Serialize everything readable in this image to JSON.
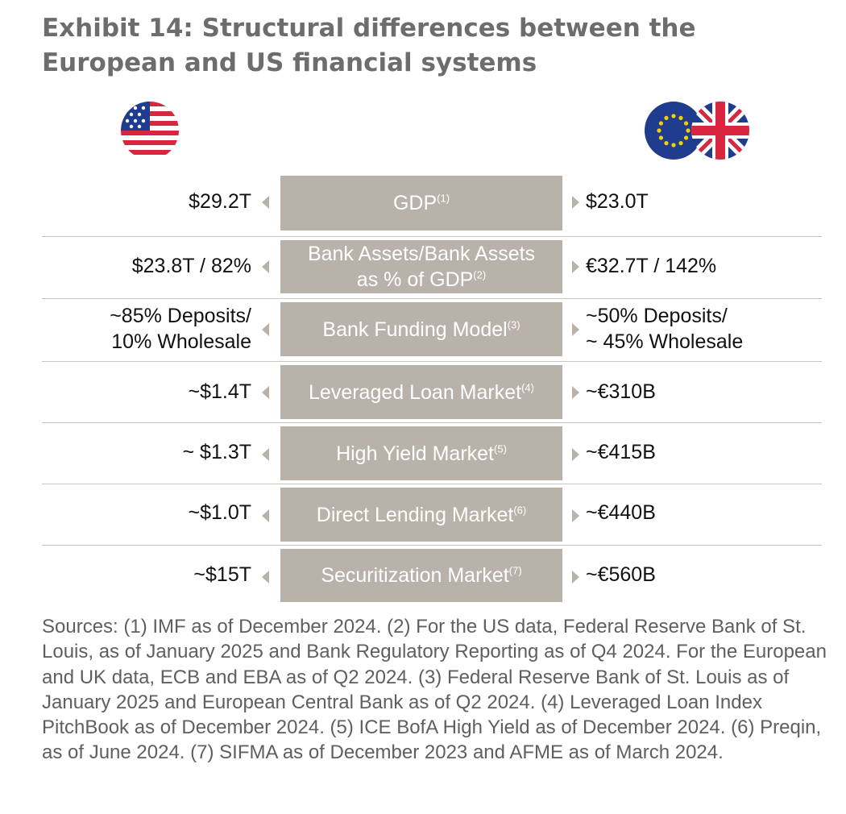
{
  "title": "Exhibit 14: Structural differences between the European and US financial systems",
  "flags": {
    "left": "us-flag",
    "right": [
      "eu-flag",
      "uk-flag"
    ]
  },
  "rows": [
    {
      "label": "GDP",
      "note": "(1)",
      "us": "$29.2T",
      "eu": "$23.0T"
    },
    {
      "label_line1": "Bank Assets/Bank Assets",
      "label_line2": "as % of GDP",
      "note": "(2)",
      "us": "$23.8T / 82%",
      "eu": "€32.7T / 142%"
    },
    {
      "label": "Bank Funding Model",
      "note": "(3)",
      "us_line1": "~85% Deposits/",
      "us_line2": "10% Wholesale",
      "eu_line1": "~50% Deposits/",
      "eu_line2": "~ 45% Wholesale"
    },
    {
      "label": "Leveraged Loan Market",
      "note": "(4)",
      "us": "~$1.4T",
      "eu": "~€310B"
    },
    {
      "label": "High Yield Market",
      "note": "(5)",
      "us": "~ $1.3T",
      "eu": "~€415B"
    },
    {
      "label": "Direct Lending Market",
      "note": "(6)",
      "us": "~$1.0T",
      "eu": "~€440B"
    },
    {
      "label": "Securitization Market",
      "note": "(7)",
      "us": "~$15T",
      "eu": "~€560B"
    }
  ],
  "sources": "Sources: (1) IMF as of December 2024. (2) For the US data, Federal Reserve Bank of St. Louis, as of January 2025 and Bank Regulatory Reporting as of Q4 2024. For the European and UK data, ECB and EBA as of Q2 2024. (3) Federal Reserve Bank of St. Louis as of January 2025 and European Central Bank as of Q2 2024. (4) Leveraged Loan Index PitchBook as of December 2024. (5) ICE BofA High Yield as of December 2024. (6) Preqin, as of June 2024. (7) SIFMA as of December 2023 and AFME as of March 2024.",
  "colors": {
    "box": "#b8b2aa",
    "title": "#6d6d6d",
    "flag_blue": "#1f3c8f",
    "flag_red": "#d7263d",
    "eu_yellow": "#f5d000"
  }
}
